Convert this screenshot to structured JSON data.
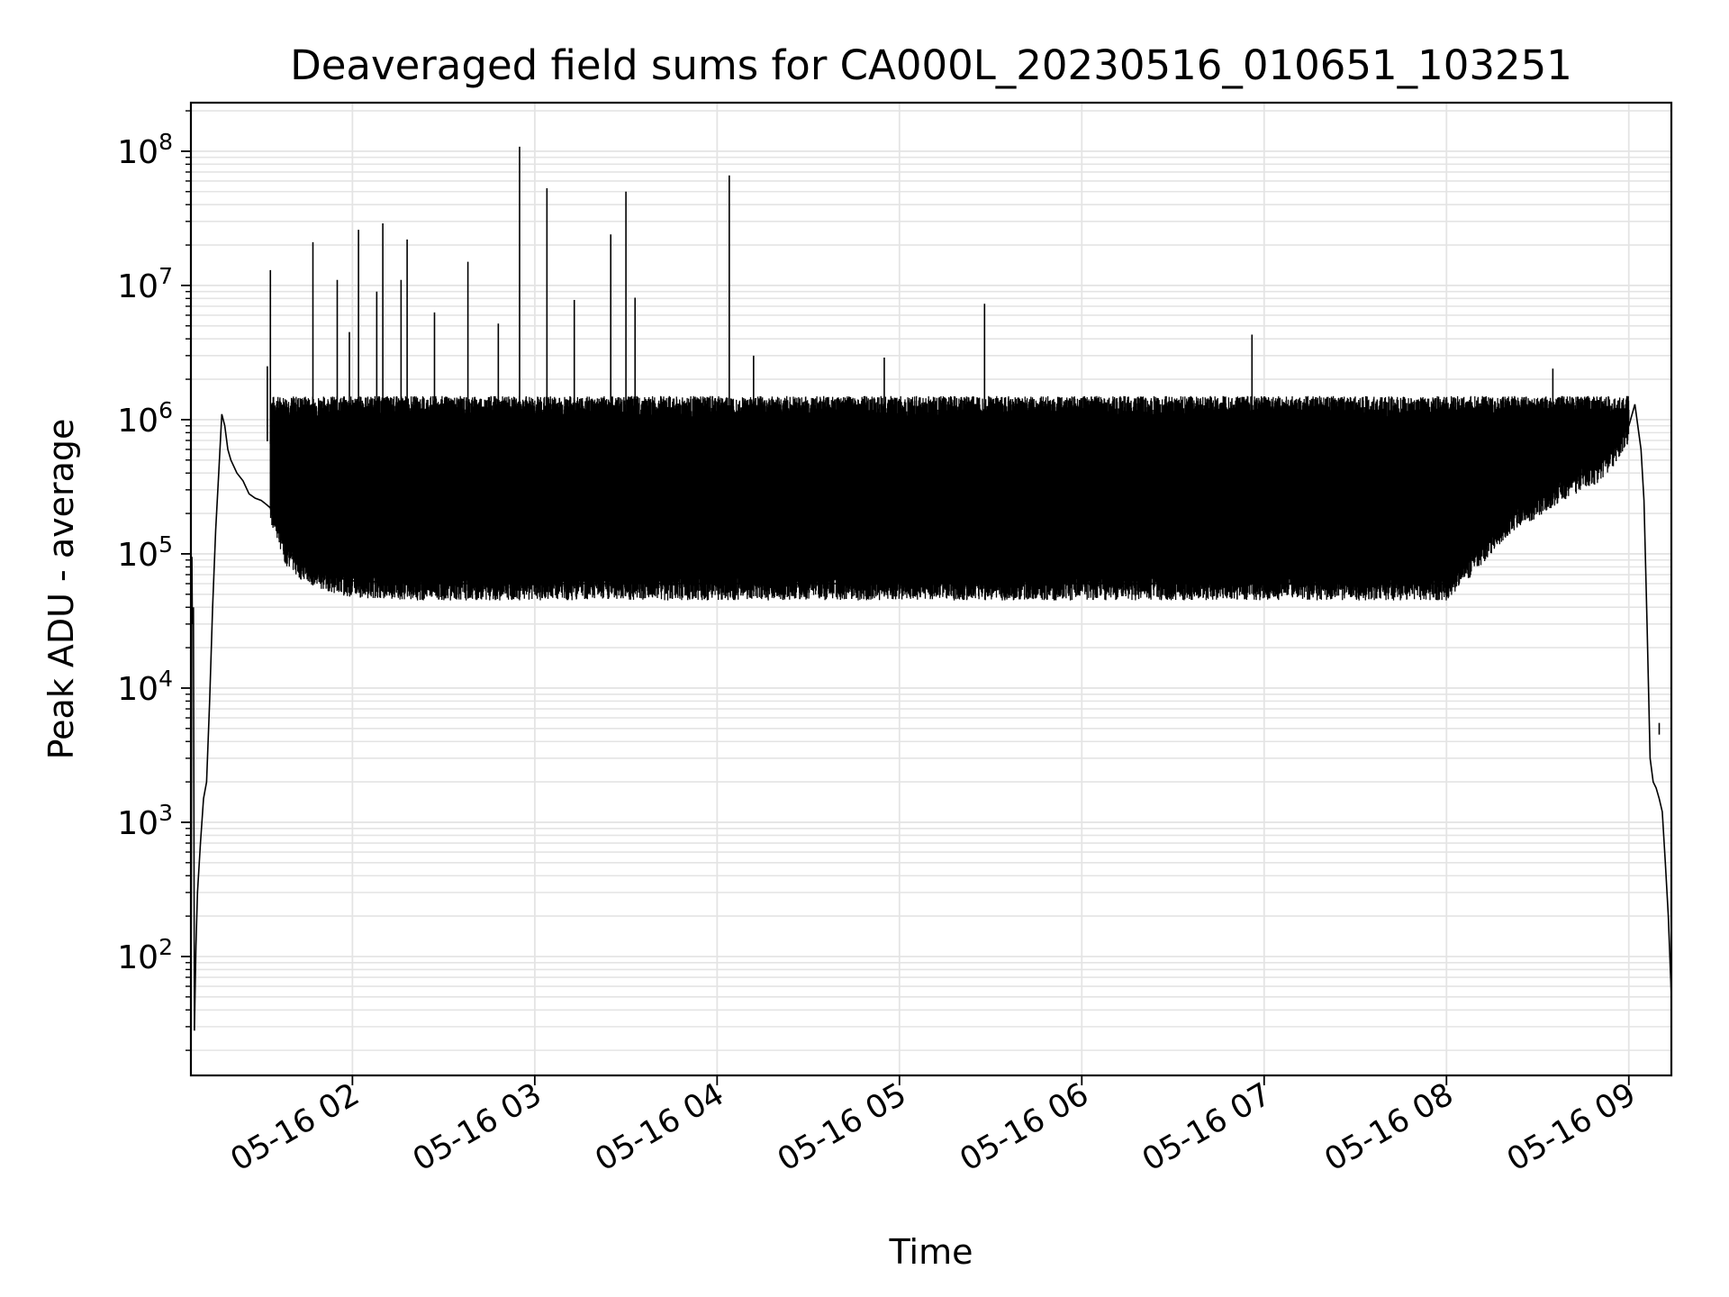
{
  "chart_data": {
    "type": "line",
    "title": "Deaveraged field sums for CA000L_20230516_010651_103251",
    "xlabel": "Time",
    "ylabel": "Peak ADU - average",
    "y_scale": "log",
    "ylim": [
      13,
      230000000
    ],
    "xlim": [
      "2023-05-16 01:06:51",
      "2023-05-16 09:14:00"
    ],
    "x_ticks": [
      "2023-05-16 02:00",
      "2023-05-16 03:00",
      "2023-05-16 04:00",
      "2023-05-16 05:00",
      "2023-05-16 06:00",
      "2023-05-16 07:00",
      "2023-05-16 08:00",
      "2023-05-16 09:00"
    ],
    "x_tick_labels": [
      "05-16 02",
      "05-16 03",
      "05-16 04",
      "05-16 05",
      "05-16 06",
      "05-16 07",
      "05-16 08",
      "05-16 09"
    ],
    "y_ticks": [
      100,
      1000,
      10000,
      100000,
      1000000,
      10000000,
      100000000
    ],
    "y_tick_labels": [
      {
        "base": "10",
        "exp": "2"
      },
      {
        "base": "10",
        "exp": "3"
      },
      {
        "base": "10",
        "exp": "4"
      },
      {
        "base": "10",
        "exp": "5"
      },
      {
        "base": "10",
        "exp": "6"
      },
      {
        "base": "10",
        "exp": "7"
      },
      {
        "base": "10",
        "exp": "8"
      }
    ],
    "grid": true,
    "line_color": "#000000",
    "grid_color": "#e4e4e4",
    "series": [
      {
        "x": [
          "01:06:51",
          "01:07:10",
          "01:07:20",
          "01:07:40",
          "01:08:00",
          "01:08:30",
          "01:09:00",
          "01:10:00",
          "01:11:00",
          "01:12:00",
          "01:13:00",
          "01:14:00",
          "01:15:00",
          "01:16:00",
          "01:17:00",
          "01:18:00",
          "01:19:00",
          "01:20:00",
          "01:22:00",
          "01:24:00",
          "01:26:00",
          "01:28:00",
          "01:30:00",
          "01:31:00",
          "01:32:00",
          "01:33:00",
          "01:34:00",
          "01:36:00",
          "01:38:00",
          "01:40:00",
          "01:42:00",
          "01:44:00",
          "01:46:00",
          "01:48:00",
          "01:50:00",
          "01:52:00",
          "01:54:00",
          "01:56:00",
          "01:58:00",
          "02:00:00",
          "02:05:00",
          "02:10:00",
          "02:20:00",
          "02:30:00",
          "02:40:00",
          "02:50:00",
          "03:00:00",
          "03:15:00",
          "03:30:00",
          "03:45:00",
          "04:00:00",
          "04:15:00",
          "04:30:00",
          "04:45:00",
          "05:00:00",
          "05:15:00",
          "05:30:00",
          "05:45:00",
          "06:00:00",
          "06:15:00",
          "06:30:00",
          "06:45:00",
          "07:00:00",
          "07:15:00",
          "07:30:00",
          "07:45:00",
          "08:00:00",
          "08:10:00",
          "08:20:00",
          "08:30:00",
          "08:40:00",
          "08:50:00",
          "08:55:00",
          "09:00:00",
          "09:02:00",
          "09:04:00",
          "09:05:00",
          "09:06:00",
          "09:07:00",
          "09:08:00",
          "09:09:00",
          "09:10:00",
          "09:11:00",
          "09:12:00",
          "09:13:00",
          "09:14:00"
        ],
        "y": [
          13,
          95000,
          30000,
          40000,
          28,
          120,
          300,
          700,
          1500,
          2000,
          8000,
          40000,
          150000,
          400000,
          1100000,
          900000,
          600000,
          500000,
          400000,
          350000,
          280000,
          260000,
          250000,
          240000,
          230000,
          220000,
          200000,
          150000,
          110000,
          100000,
          90000,
          80000,
          80000,
          75000,
          70000,
          70000,
          68000,
          65000,
          65000,
          63000,
          62000,
          62000,
          60000,
          60000,
          60000,
          60000,
          60000,
          60000,
          60000,
          60000,
          60000,
          60000,
          60000,
          60000,
          60000,
          60000,
          60000,
          60000,
          60000,
          60000,
          60000,
          60000,
          60000,
          60000,
          60000,
          60000,
          60000,
          100000,
          180000,
          250000,
          350000,
          450000,
          600000,
          900000,
          1300000,
          600000,
          250000,
          30000,
          3000,
          2000,
          1800,
          1500,
          1200,
          500,
          200,
          50
        ]
      }
    ],
    "spikes": [
      {
        "x": "01:32:00",
        "y": 2500000
      },
      {
        "x": "01:33:00",
        "y": 13000000
      },
      {
        "x": "01:47:00",
        "y": 21000000
      },
      {
        "x": "01:55:00",
        "y": 11000000
      },
      {
        "x": "01:59:00",
        "y": 4500000
      },
      {
        "x": "02:02:00",
        "y": 26000000
      },
      {
        "x": "02:08:00",
        "y": 9000000
      },
      {
        "x": "02:10:00",
        "y": 29000000
      },
      {
        "x": "02:16:00",
        "y": 11000000
      },
      {
        "x": "02:18:00",
        "y": 22000000
      },
      {
        "x": "02:27:00",
        "y": 6300000
      },
      {
        "x": "02:38:00",
        "y": 15000000
      },
      {
        "x": "02:48:00",
        "y": 5200000
      },
      {
        "x": "02:55:00",
        "y": 108000000
      },
      {
        "x": "03:04:00",
        "y": 53000000
      },
      {
        "x": "03:13:00",
        "y": 7800000
      },
      {
        "x": "03:25:00",
        "y": 24000000
      },
      {
        "x": "03:30:00",
        "y": 50000000
      },
      {
        "x": "03:33:00",
        "y": 8100000
      },
      {
        "x": "04:04:00",
        "y": 66000000
      },
      {
        "x": "04:12:00",
        "y": 3000000
      },
      {
        "x": "04:55:00",
        "y": 2900000
      },
      {
        "x": "05:28:00",
        "y": 7300000
      },
      {
        "x": "06:56:00",
        "y": 4300000
      },
      {
        "x": "08:35:00",
        "y": 2400000
      },
      {
        "x": "09:10:00",
        "y": 5500
      }
    ]
  }
}
